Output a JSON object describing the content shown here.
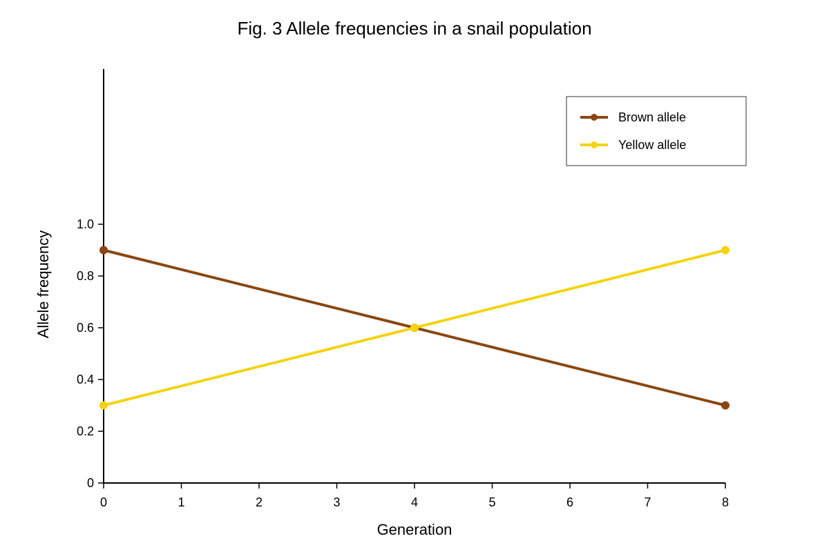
{
  "chart_data": {
    "type": "line",
    "title": "Fig. 3 Allele frequencies in a snail population",
    "xlabel": "Generation",
    "ylabel": "Allele frequency",
    "x_ticks": [
      "0",
      "1",
      "2",
      "3",
      "4",
      "5",
      "6",
      "7",
      "8"
    ],
    "y_ticks": [
      "0",
      "0.2",
      "0.4",
      "0.6",
      "0.8",
      "1.0"
    ],
    "xlim": [
      0,
      8
    ],
    "ylim": [
      0,
      1.6
    ],
    "grid": false,
    "legend_position": "top-right",
    "series": [
      {
        "name": "Brown allele",
        "color": "#8B4513",
        "x": [
          0,
          4,
          8
        ],
        "y": [
          0.9,
          0.6,
          0.3
        ]
      },
      {
        "name": "Yellow allele",
        "color": "#F5D20F",
        "x": [
          0,
          4,
          8
        ],
        "y": [
          0.3,
          0.6,
          0.9
        ]
      }
    ]
  }
}
